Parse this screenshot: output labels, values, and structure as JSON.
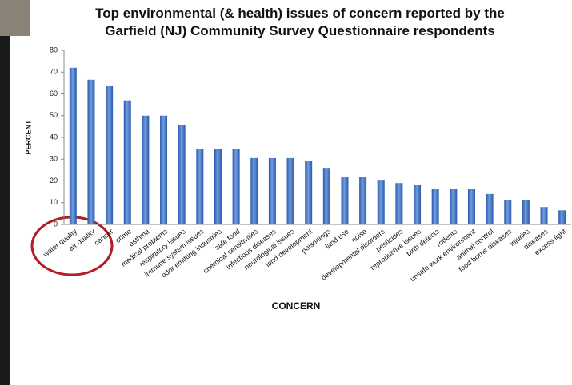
{
  "chart_data": {
    "type": "bar",
    "title": "Top environmental (& health) issues of concern reported by the Garfield (NJ) Community Survey Questionnaire respondents",
    "x_label": "CONCERN",
    "y_label": "PERCENT",
    "categories": [
      "water quality",
      "air quality",
      "cancer",
      "crime",
      "asthma",
      "medical problems",
      "respiratory issues",
      "immune system issues",
      "odor emitting industries",
      "safe food",
      "chemical sensitivities",
      "infectious diseases",
      "neurological issues",
      "land development",
      "poisonings",
      "land use",
      "noise",
      "developmental disorders",
      "pesticides",
      "reproductive issues",
      "birth defects",
      "rodents",
      "unsafe work environment",
      "animal control",
      "food borne diseases",
      "injuries",
      "diseases",
      "excess light"
    ],
    "values": [
      72,
      66.5,
      63.5,
      57,
      50,
      50,
      45.5,
      34.5,
      34.5,
      34.5,
      30.5,
      30.5,
      30.5,
      29,
      26,
      22,
      22,
      20.5,
      19,
      18,
      16.5,
      16.5,
      16.5,
      14,
      11,
      11,
      8,
      6.5
    ],
    "color": "#3a6fc4",
    "ylim": [
      0,
      80
    ],
    "yticks": [
      0,
      10,
      20,
      30,
      40,
      50,
      60,
      70,
      80
    ],
    "grid": false
  }
}
